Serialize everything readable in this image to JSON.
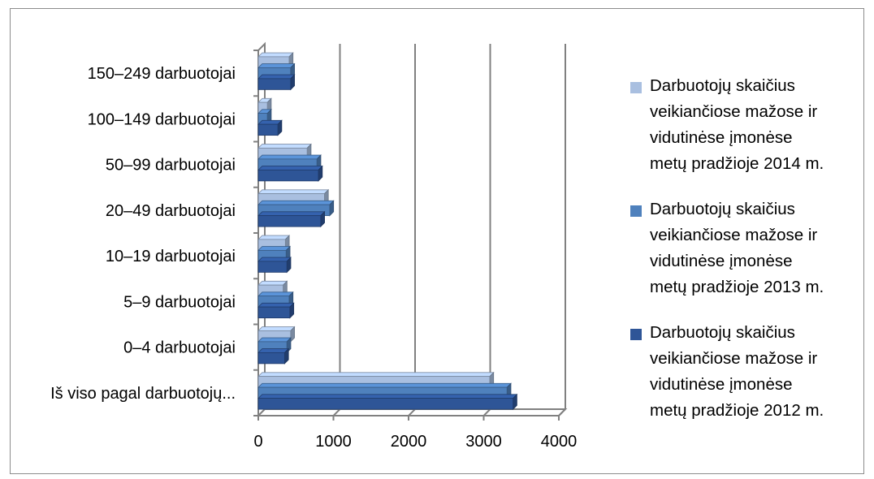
{
  "chart_data": {
    "type": "bar",
    "orientation": "horizontal",
    "style": "3d-clustered",
    "categories": [
      "150–249 darbuotojai",
      "100–149 darbuotojai",
      "50–99 darbuotojai",
      "20–49 darbuotojai",
      "10–19 darbuotojai",
      "5–9 darbuotojai",
      "0–4 darbuotojai",
      "Iš viso pagal darbuotojų..."
    ],
    "series": [
      {
        "name": "Darbuotojų skaičius veikiančiose mažose ir vidutinėse įmonėse metų pradžioje 2014 m.",
        "color": "#a9bfe0",
        "values": [
          410,
          120,
          650,
          880,
          360,
          330,
          430,
          3080
        ]
      },
      {
        "name": "Darbuotojų skaičius veikiančiose mažose ir vidutinėse įmonėse metų pradžioje 2013 m.",
        "color": "#4f81bd",
        "values": [
          430,
          120,
          780,
          950,
          370,
          410,
          380,
          3310
        ]
      },
      {
        "name": "Darbuotojų skaičius veikiančiose mažose ir vidutinėse įmonėse metų pradžioje 2012 m.",
        "color": "#2e5597",
        "values": [
          430,
          260,
          800,
          830,
          380,
          420,
          350,
          3390
        ]
      }
    ],
    "xlim": [
      0,
      4000
    ],
    "xticks": [
      "0",
      "1000",
      "2000",
      "3000",
      "4000"
    ],
    "grid": true,
    "legend_position": "right"
  }
}
